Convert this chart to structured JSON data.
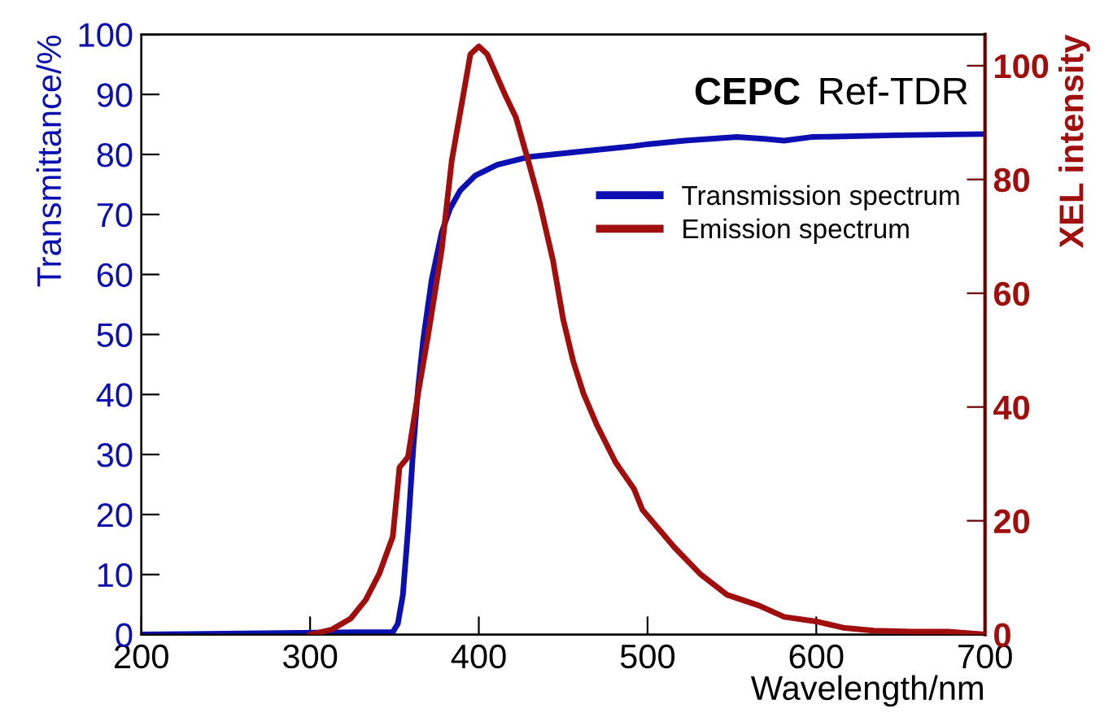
{
  "chart_data": {
    "type": "line",
    "xlabel": "Wavelength/nm",
    "ylabel": "Transmittance/%",
    "y2label": "XEL intensity",
    "annotations": [
      "CEPC",
      "Ref-TDR"
    ],
    "xlim": [
      200,
      700
    ],
    "xticks": [
      200,
      300,
      400,
      500,
      600,
      700
    ],
    "ylim": [
      0,
      100
    ],
    "yticks": [
      0,
      10,
      20,
      30,
      40,
      50,
      60,
      70,
      80,
      90,
      100
    ],
    "y2lim": [
      0,
      105.5
    ],
    "y2ticks": [
      0,
      20,
      40,
      60,
      80,
      100
    ],
    "legend": "right",
    "grid": false,
    "series": [
      {
        "name": "Transmission spectrum",
        "color": "#0c10b0",
        "x": [
          200,
          327,
          349,
          352,
          355,
          358,
          361,
          364,
          367,
          372,
          378,
          383,
          389,
          398,
          411,
          430,
          461,
          492,
          500,
          522,
          553,
          569,
          581,
          597,
          647,
          700
        ],
        "values": [
          0,
          0.4,
          0.4,
          1.8,
          6.6,
          17.3,
          30.5,
          41,
          49,
          59,
          67,
          71,
          74,
          76.5,
          78.3,
          79.6,
          80.5,
          81.4,
          81.7,
          82.3,
          82.9,
          82.6,
          82.3,
          82.9,
          83.2,
          83.4
        ]
      },
      {
        "name": "Emission spectrum",
        "color": "#a00e0e",
        "axis": "y2",
        "x": [
          300,
          313,
          324,
          333,
          341,
          349,
          353,
          358,
          364,
          370,
          378,
          384,
          389,
          395,
          400,
          405,
          409,
          416,
          422,
          430,
          436,
          444,
          450,
          456,
          462,
          470,
          481,
          492,
          497,
          516,
          531,
          547,
          566,
          581,
          600,
          616,
          634,
          656,
          678,
          700
        ],
        "values": [
          0,
          0.9,
          2.8,
          6.1,
          10.7,
          17.2,
          29.4,
          31.2,
          42.4,
          52.7,
          67.6,
          83.4,
          91.8,
          102,
          103.4,
          102,
          99.3,
          94.6,
          90.9,
          82.5,
          76,
          65.7,
          55.4,
          48,
          42.4,
          36.8,
          30.3,
          25.6,
          21.9,
          15.3,
          10.7,
          7,
          5.1,
          3.1,
          2.3,
          1.2,
          0.7,
          0.5,
          0.5,
          0
        ]
      }
    ]
  }
}
